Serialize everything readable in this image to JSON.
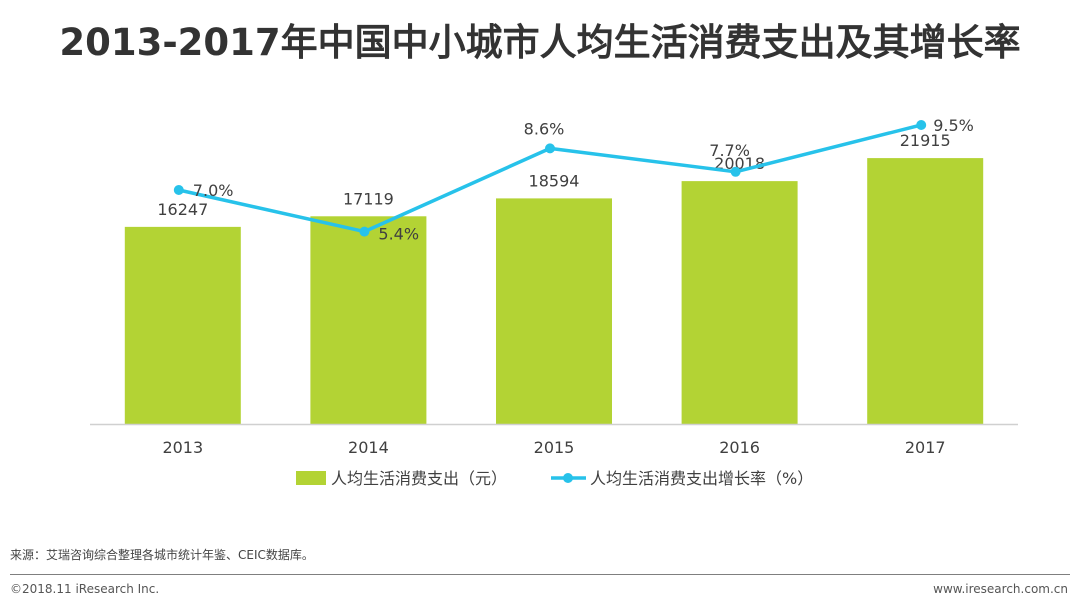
{
  "title": "2013-2017年中国中小城市人均生活消费支出及其增长率",
  "chart_data": {
    "type": "bar+line",
    "categories": [
      "2013",
      "2014",
      "2015",
      "2016",
      "2017"
    ],
    "series": [
      {
        "name": "人均生活消费支出（元）",
        "type": "bar",
        "color": "#b3d334",
        "values": [
          16247,
          17119,
          18594,
          20018,
          21915
        ],
        "labels": [
          "16247",
          "17119",
          "18594",
          "20018",
          "21915"
        ]
      },
      {
        "name": "人均生活消费支出增长率（%）",
        "type": "line",
        "color": "#27c2ea",
        "values": [
          7.0,
          5.4,
          8.6,
          7.7,
          9.5
        ],
        "labels": [
          "7.0%",
          "5.4%",
          "8.6%",
          "7.7%",
          "9.5%"
        ]
      }
    ],
    "bar_axis_range": [
      0,
      30000
    ],
    "line_axis_range": [
      -2,
      12
    ],
    "axes_visible": false,
    "grid": false,
    "legend_position": "bottom"
  },
  "footer": {
    "source": "来源：艾瑞咨询综合整理各城市统计年鉴、CEIC数据库。",
    "copyright": "©2018.11 iResearch Inc.",
    "website": "www.iresearch.com.cn"
  }
}
